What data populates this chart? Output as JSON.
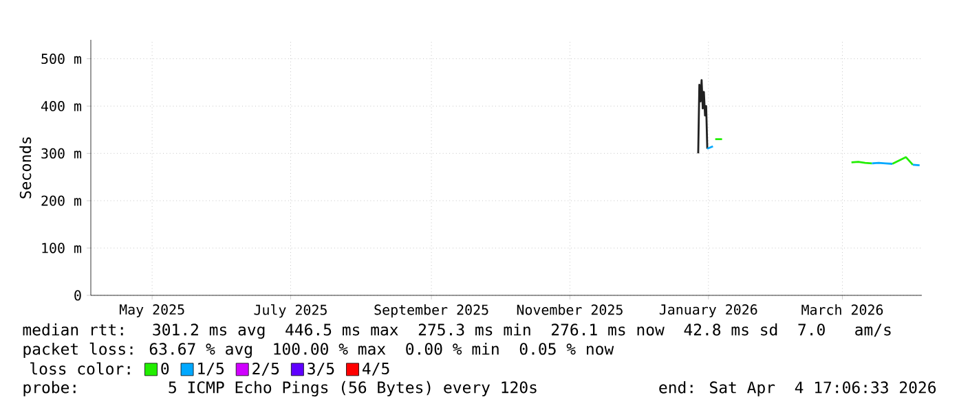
{
  "chart_data": {
    "type": "line",
    "ylabel": "Seconds",
    "legend_title": "loss color:",
    "x": [
      "2025-12-27T12:00",
      "2025-12-28T00:00",
      "2025-12-28T12:00",
      "2025-12-29T00:00",
      "2025-12-29T12:00",
      "2025-12-30T00:00",
      "2025-12-30T12:00",
      "2025-12-31T00:00",
      "2025-12-31T12:00",
      "2026-01-03",
      "2026-01-04",
      "2026-01-07",
      "2026-02-05",
      "2026-03-05",
      "2026-03-08",
      "2026-03-11",
      "2026-03-14",
      "2026-03-17",
      "2026-03-20",
      "2026-03-23",
      "2026-03-29",
      "2026-04-01",
      "2026-04-04"
    ],
    "series": [
      {
        "color": "#202020",
        "values": [
          300,
          445,
          410,
          455,
          395,
          430,
          380,
          400,
          310,
          null,
          null,
          null,
          null,
          null,
          null,
          null,
          null,
          null,
          null,
          null,
          null,
          null,
          null
        ]
      },
      {
        "name": "0",
        "color": "#22ee00",
        "values": [
          null,
          null,
          null,
          null,
          null,
          null,
          null,
          null,
          null,
          null,
          330,
          330,
          null,
          281,
          282,
          280,
          279,
          null,
          null,
          278,
          292,
          276,
          null
        ]
      },
      {
        "name": "1/5",
        "color": "#00a8ff",
        "values": [
          null,
          null,
          null,
          null,
          null,
          null,
          null,
          null,
          310,
          315,
          null,
          null,
          null,
          null,
          null,
          null,
          279,
          280,
          279,
          278,
          null,
          276,
          275
        ]
      },
      {
        "name": "2/5",
        "color": "#d000ff",
        "values": [
          null,
          null,
          null,
          null,
          null,
          null,
          null,
          null,
          null,
          null,
          null,
          null,
          null,
          null,
          null,
          null,
          null,
          null,
          null,
          null,
          null,
          null,
          null
        ]
      },
      {
        "name": "3/5",
        "color": "#6000ff",
        "values": [
          null,
          null,
          null,
          null,
          null,
          null,
          null,
          null,
          null,
          null,
          null,
          null,
          null,
          null,
          null,
          null,
          null,
          null,
          null,
          null,
          null,
          null,
          null
        ]
      },
      {
        "name": "4/5",
        "color": "#ff0000",
        "values": [
          null,
          null,
          null,
          null,
          null,
          null,
          null,
          null,
          null,
          null,
          null,
          null,
          null,
          null,
          null,
          null,
          null,
          null,
          null,
          null,
          null,
          null,
          null
        ]
      }
    ],
    "xlim": [
      "2025-04-04",
      "2026-04-05"
    ],
    "xticks": [
      {
        "value": "2025-05-01",
        "label": "May 2025"
      },
      {
        "value": "2025-07-01",
        "label": "July 2025"
      },
      {
        "value": "2025-09-01",
        "label": "September 2025"
      },
      {
        "value": "2025-11-01",
        "label": "November 2025"
      },
      {
        "value": "2026-01-01",
        "label": "January 2026"
      },
      {
        "value": "2026-03-01",
        "label": "March 2026"
      }
    ],
    "ylim": [
      0,
      540
    ],
    "yticks": [
      0,
      {
        "value": 100,
        "label": "100 m"
      },
      {
        "value": 200,
        "label": "200 m"
      },
      {
        "value": 300,
        "label": "300 m"
      },
      {
        "value": 400,
        "label": "400 m"
      },
      {
        "value": 500,
        "label": "500 m"
      }
    ],
    "grid": true,
    "legend": "bottom left",
    "marker": "none",
    "line_style": "solid",
    "annotations": [
      "median rtt:  301.2 ms avg  446.5 ms max  275.3 ms min  276.1 ms now  42.8 ms sd  7.0   am/s",
      "packet loss: 63.67 % avg  100.00 % max  0.00 % min  0.05 % now",
      "probe:       5 ICMP Echo Pings (56 Bytes) every 120s",
      "end: Sat Apr  4 17:06:33 2026"
    ]
  }
}
